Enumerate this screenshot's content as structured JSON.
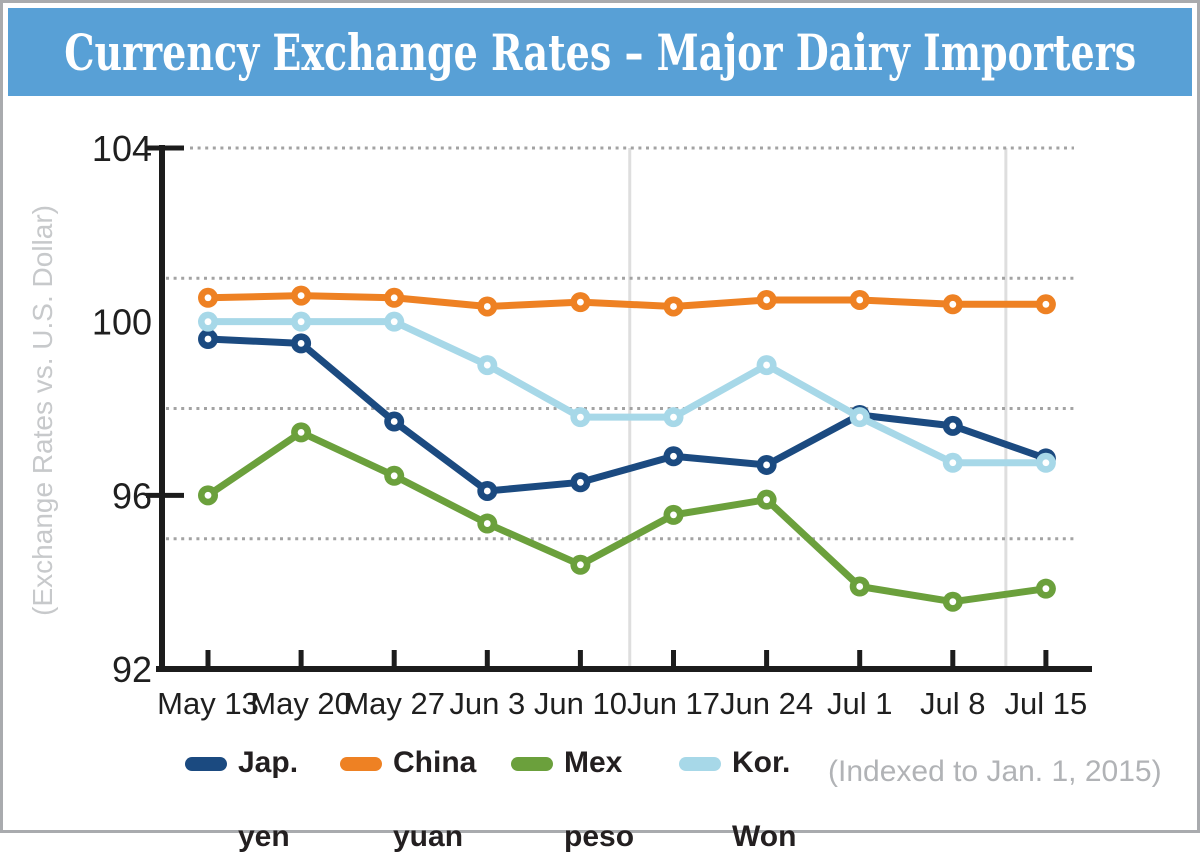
{
  "header": {
    "title": "Currency Exchange Rates – Major Dairy Importers",
    "bg_color": "#58a0d6",
    "text_color": "#ffffff"
  },
  "chart_data": {
    "type": "line",
    "title": "Currency Exchange Rates – Major Dairy Importers",
    "ylabel": "(Exchange Rates vs. U.S. Dollar)",
    "note": "(Indexed to Jan. 1, 2015)",
    "categories": [
      "May 13",
      "May 20",
      "May 27",
      "Jun 3",
      "Jun 10",
      "Jun 17",
      "Jun 24",
      "Jul 1",
      "Jul 8",
      "Jul 15"
    ],
    "ylim": [
      92,
      104
    ],
    "ytick_values": [
      104,
      100,
      96,
      92
    ],
    "ytick_marks": [
      104,
      96
    ],
    "dotted_gridline_values": [
      95,
      98,
      101,
      104
    ],
    "vertical_gridline_week_positions": [
      4.53,
      8.57
    ],
    "grid": "dotted horizontal lines every 3 units",
    "legend_position": "bottom",
    "axis_color": "#1c1c1c",
    "grid_color": "#a3a3a3",
    "vertical_line_color": "#dedede",
    "series": [
      {
        "name": "Jap. yen",
        "legend_lines": [
          "Jap.",
          "yen"
        ],
        "color": "#1b4a80",
        "values": [
          99.6,
          99.5,
          97.7,
          96.1,
          96.3,
          96.9,
          96.7,
          97.85,
          97.6,
          96.85
        ]
      },
      {
        "name": "China yuan",
        "legend_lines": [
          "China",
          "yuan"
        ],
        "color": "#ee8123",
        "values": [
          100.55,
          100.6,
          100.55,
          100.35,
          100.45,
          100.35,
          100.5,
          100.5,
          100.4,
          100.4
        ]
      },
      {
        "name": "Mex peso",
        "legend_lines": [
          "Mex",
          "peso"
        ],
        "color": "#6ba03c",
        "values": [
          96.0,
          97.45,
          96.45,
          95.35,
          94.4,
          95.55,
          95.9,
          93.9,
          93.55,
          93.85
        ]
      },
      {
        "name": "Kor. Won",
        "legend_lines": [
          "Kor.",
          "Won"
        ],
        "color": "#a7d8e8",
        "values": [
          100.0,
          100.0,
          100.0,
          99.0,
          97.8,
          97.8,
          99.0,
          97.8,
          96.75,
          96.75
        ]
      }
    ]
  }
}
